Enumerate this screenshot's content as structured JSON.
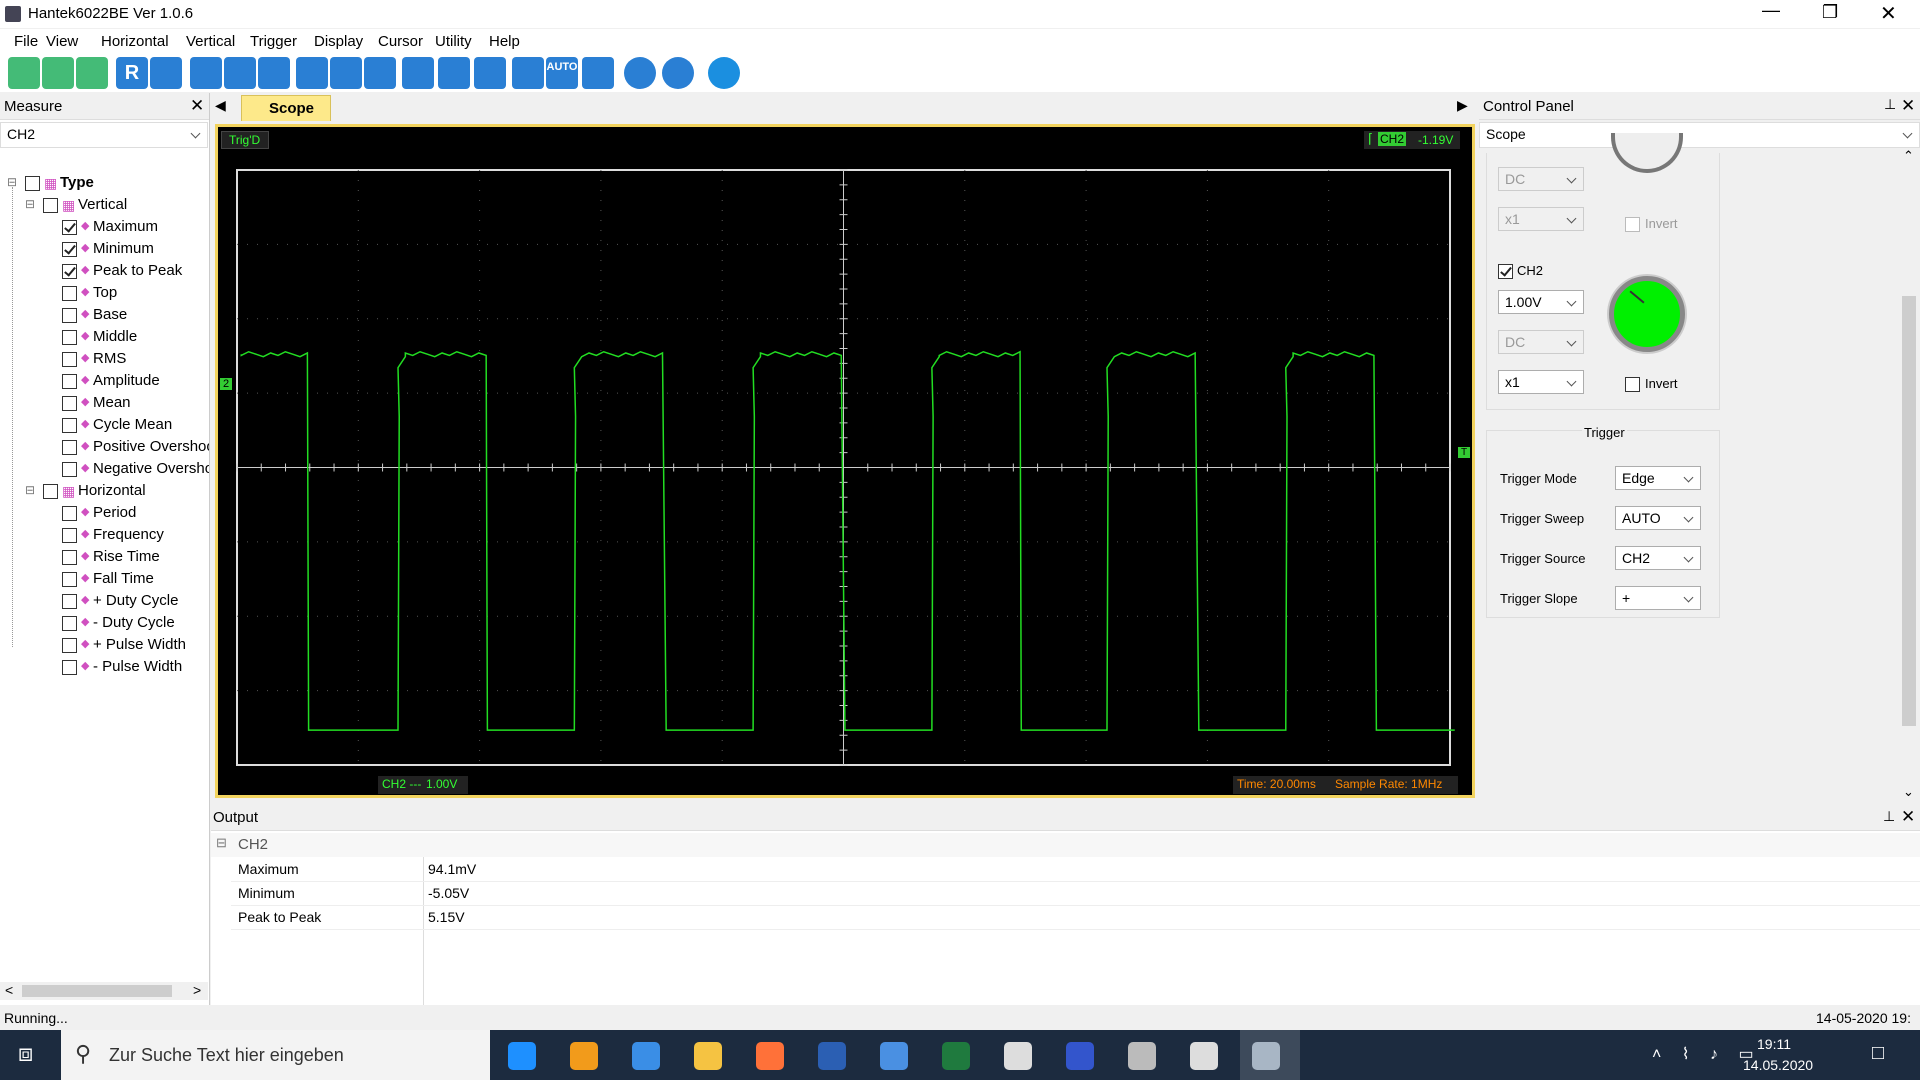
{
  "window": {
    "title": "Hantek6022BE Ver 1.0.6"
  },
  "menu": [
    "File",
    "View",
    "Horizontal",
    "Vertical",
    "Trigger",
    "Display",
    "Cursor",
    "Utility",
    "Help"
  ],
  "toolbar": {
    "reset": "R",
    "auto": "AUTO"
  },
  "measure": {
    "title": "Measure",
    "select": "CH2",
    "root": "Type",
    "groups": [
      {
        "label": "Vertical",
        "items": [
          {
            "label": "Maximum",
            "checked": true
          },
          {
            "label": "Minimum",
            "checked": true
          },
          {
            "label": "Peak to Peak",
            "checked": true
          },
          {
            "label": "Top",
            "checked": false
          },
          {
            "label": "Base",
            "checked": false
          },
          {
            "label": "Middle",
            "checked": false
          },
          {
            "label": "RMS",
            "checked": false
          },
          {
            "label": "Amplitude",
            "checked": false
          },
          {
            "label": "Mean",
            "checked": false
          },
          {
            "label": "Cycle Mean",
            "checked": false
          },
          {
            "label": "Positive Overshoo",
            "checked": false
          },
          {
            "label": "Negative Oversho",
            "checked": false
          }
        ]
      },
      {
        "label": "Horizontal",
        "items": [
          {
            "label": "Period",
            "checked": false
          },
          {
            "label": "Frequency",
            "checked": false
          },
          {
            "label": "Rise Time",
            "checked": false
          },
          {
            "label": "Fall Time",
            "checked": false
          },
          {
            "label": "+ Duty Cycle",
            "checked": false
          },
          {
            "label": "- Duty Cycle",
            "checked": false
          },
          {
            "label": "+ Pulse Width",
            "checked": false
          },
          {
            "label": "- Pulse Width",
            "checked": false
          }
        ]
      }
    ]
  },
  "scope": {
    "tab": "Scope",
    "status": "Trig'D",
    "trigger_channel": "CH2",
    "trigger_level": "-1.19V",
    "channel_marker": "2",
    "trigger_marker": "T",
    "channel": "CH2 ---",
    "volts": "1.00V",
    "time": "Time: 20.00ms",
    "sample_rate": "Sample Rate: 1MHz"
  },
  "control_panel": {
    "title": "Control Panel",
    "select": "Scope",
    "ch1": {
      "coupling": "DC",
      "probe": "x1",
      "invert": "Invert"
    },
    "ch2": {
      "label": "CH2",
      "volts": "1.00V",
      "coupling": "DC",
      "probe": "x1",
      "invert": "Invert"
    },
    "trigger": {
      "title": "Trigger",
      "rows": [
        [
          "Trigger Mode",
          "Edge"
        ],
        [
          "Trigger Sweep",
          "AUTO"
        ],
        [
          "Trigger Source",
          "CH2"
        ],
        [
          "Trigger Slope",
          "+"
        ]
      ]
    }
  },
  "output": {
    "title": "Output",
    "group": "CH2",
    "rows": [
      [
        "Maximum",
        "94.1mV"
      ],
      [
        "Minimum",
        "-5.05V"
      ],
      [
        "Peak to Peak",
        "5.15V"
      ]
    ]
  },
  "status": {
    "left": "Running...",
    "right": "14-05-2020 19:"
  },
  "taskbar": {
    "search": "Zur Suche Text hier eingeben",
    "time": "19:11",
    "date": "14.05.2020"
  }
}
